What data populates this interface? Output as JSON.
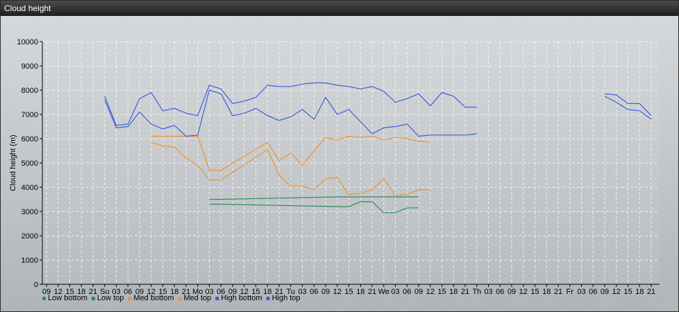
{
  "window": {
    "title": "Cloud height"
  },
  "colors": {
    "low": "#2e8b57",
    "med": "#f0922c",
    "high": "#3b5fd8",
    "grid": "#ffffff",
    "axis": "#000000"
  },
  "chart_data": {
    "type": "line",
    "title": "",
    "ylabel": "Cloud height (m)",
    "xlabel": "",
    "ylim": [
      0,
      10000
    ],
    "y_ticks": [
      0,
      1000,
      2000,
      3000,
      4000,
      5000,
      6000,
      7000,
      8000,
      9000,
      10000
    ],
    "x_unit": "3-hour steps from first tick",
    "x_ticks": [
      "09",
      "12",
      "15",
      "18",
      "21",
      "Su",
      "03",
      "06",
      "09",
      "12",
      "15",
      "18",
      "21",
      "Mo",
      "03",
      "06",
      "09",
      "12",
      "15",
      "18",
      "21",
      "Tu",
      "03",
      "06",
      "09",
      "12",
      "15",
      "18",
      "21",
      "We",
      "03",
      "06",
      "09",
      "12",
      "15",
      "18",
      "21",
      "Th",
      "03",
      "06",
      "09",
      "12",
      "15",
      "18",
      "21",
      "Fr",
      "03",
      "06",
      "09",
      "12",
      "15",
      "18",
      "21"
    ],
    "grid": true,
    "legend_position": "bottom-left",
    "series": [
      {
        "name": "Low bottom",
        "color_key": "low",
        "points": [
          [
            14,
            3300
          ],
          [
            15,
            3300
          ],
          [
            25,
            3200
          ],
          [
            26,
            3200
          ],
          [
            27,
            3400
          ],
          [
            28,
            3400
          ],
          [
            29,
            2950
          ],
          [
            30,
            2950
          ],
          [
            31,
            3150
          ],
          [
            32,
            3150
          ]
        ]
      },
      {
        "name": "Low top",
        "color_key": "low",
        "points": [
          [
            14,
            3500
          ],
          [
            15,
            3500
          ],
          [
            25,
            3600
          ],
          [
            26,
            3600
          ],
          [
            27,
            3600
          ],
          [
            28,
            3600
          ],
          [
            29,
            3600
          ],
          [
            30,
            3600
          ],
          [
            31,
            3600
          ],
          [
            32,
            3600
          ]
        ]
      },
      {
        "name": "Med bottom",
        "color_key": "med",
        "points": [
          [
            9,
            5850
          ],
          [
            10,
            5700
          ],
          [
            11,
            5650
          ],
          [
            12,
            5200
          ],
          [
            13,
            4900
          ],
          [
            14,
            4300
          ],
          [
            15,
            4300
          ],
          [
            19,
            5550
          ],
          [
            20,
            4500
          ],
          [
            21,
            4050
          ],
          [
            22,
            4050
          ],
          [
            23,
            3900
          ],
          [
            24,
            4350
          ],
          [
            25,
            4400
          ],
          [
            26,
            3700
          ],
          [
            27,
            3750
          ],
          [
            28,
            3900
          ],
          [
            29,
            4350
          ],
          [
            30,
            3650
          ],
          [
            31,
            3700
          ],
          [
            32,
            3900
          ],
          [
            33,
            3900
          ]
        ]
      },
      {
        "name": "Med top",
        "color_key": "med",
        "points": [
          [
            9,
            6100
          ],
          [
            10,
            6100
          ],
          [
            11,
            6100
          ],
          [
            12,
            6100
          ],
          [
            13,
            6100
          ],
          [
            14,
            4700
          ],
          [
            15,
            4700
          ],
          [
            19,
            5850
          ],
          [
            20,
            5100
          ],
          [
            21,
            5400
          ],
          [
            22,
            4900
          ],
          [
            23,
            5500
          ],
          [
            24,
            6050
          ],
          [
            25,
            5950
          ],
          [
            26,
            6100
          ],
          [
            27,
            6050
          ],
          [
            28,
            6100
          ],
          [
            29,
            5950
          ],
          [
            30,
            6050
          ],
          [
            31,
            6000
          ],
          [
            32,
            5900
          ],
          [
            33,
            5850
          ]
        ]
      },
      {
        "name": "High bottom",
        "color_key": "high",
        "points": [
          [
            5,
            7600
          ],
          [
            6,
            6450
          ],
          [
            7,
            6500
          ],
          [
            8,
            7100
          ],
          [
            9,
            6600
          ],
          [
            10,
            6400
          ],
          [
            11,
            6550
          ],
          [
            12,
            6100
          ],
          [
            13,
            6150
          ],
          [
            14,
            8000
          ],
          [
            15,
            7850
          ],
          [
            16,
            6950
          ],
          [
            17,
            7050
          ],
          [
            18,
            7250
          ],
          [
            19,
            6950
          ],
          [
            20,
            6750
          ],
          [
            21,
            6900
          ],
          [
            22,
            7200
          ],
          [
            23,
            6800
          ],
          [
            24,
            7700
          ],
          [
            25,
            7000
          ],
          [
            26,
            7200
          ],
          [
            27,
            6700
          ],
          [
            28,
            6200
          ],
          [
            29,
            6450
          ],
          [
            30,
            6500
          ],
          [
            31,
            6600
          ],
          [
            32,
            6100
          ],
          [
            33,
            6150
          ],
          [
            34,
            6150
          ],
          [
            35,
            6150
          ],
          [
            36,
            6150
          ],
          [
            37,
            6200
          ],
          [
            38,
            null
          ],
          [
            39,
            null
          ],
          [
            40,
            null
          ],
          [
            41,
            null
          ],
          [
            42,
            null
          ],
          [
            43,
            null
          ],
          [
            44,
            null
          ],
          [
            45,
            null
          ],
          [
            46,
            null
          ],
          [
            47,
            null
          ],
          [
            48,
            7750
          ],
          [
            49,
            7500
          ],
          [
            50,
            7200
          ],
          [
            51,
            7150
          ],
          [
            52,
            6800
          ]
        ]
      },
      {
        "name": "High top",
        "color_key": "high",
        "points": [
          [
            5,
            7750
          ],
          [
            6,
            6550
          ],
          [
            7,
            6600
          ],
          [
            8,
            7650
          ],
          [
            9,
            7900
          ],
          [
            10,
            7150
          ],
          [
            11,
            7250
          ],
          [
            12,
            7050
          ],
          [
            13,
            6950
          ],
          [
            14,
            8200
          ],
          [
            15,
            8050
          ],
          [
            16,
            7450
          ],
          [
            17,
            7550
          ],
          [
            18,
            7700
          ],
          [
            19,
            8200
          ],
          [
            20,
            8150
          ],
          [
            21,
            8150
          ],
          [
            22,
            8250
          ],
          [
            23,
            8300
          ],
          [
            24,
            8300
          ],
          [
            25,
            8200
          ],
          [
            26,
            8150
          ],
          [
            27,
            8050
          ],
          [
            28,
            8150
          ],
          [
            29,
            7950
          ],
          [
            30,
            7500
          ],
          [
            31,
            7650
          ],
          [
            32,
            7850
          ],
          [
            33,
            7350
          ],
          [
            34,
            7900
          ],
          [
            35,
            7750
          ],
          [
            36,
            7300
          ],
          [
            37,
            7300
          ],
          [
            38,
            null
          ],
          [
            39,
            null
          ],
          [
            40,
            null
          ],
          [
            41,
            null
          ],
          [
            42,
            null
          ],
          [
            43,
            null
          ],
          [
            44,
            null
          ],
          [
            45,
            null
          ],
          [
            46,
            null
          ],
          [
            47,
            null
          ],
          [
            48,
            7850
          ],
          [
            49,
            7800
          ],
          [
            50,
            7450
          ],
          [
            51,
            7450
          ],
          [
            52,
            6950
          ]
        ]
      }
    ]
  }
}
